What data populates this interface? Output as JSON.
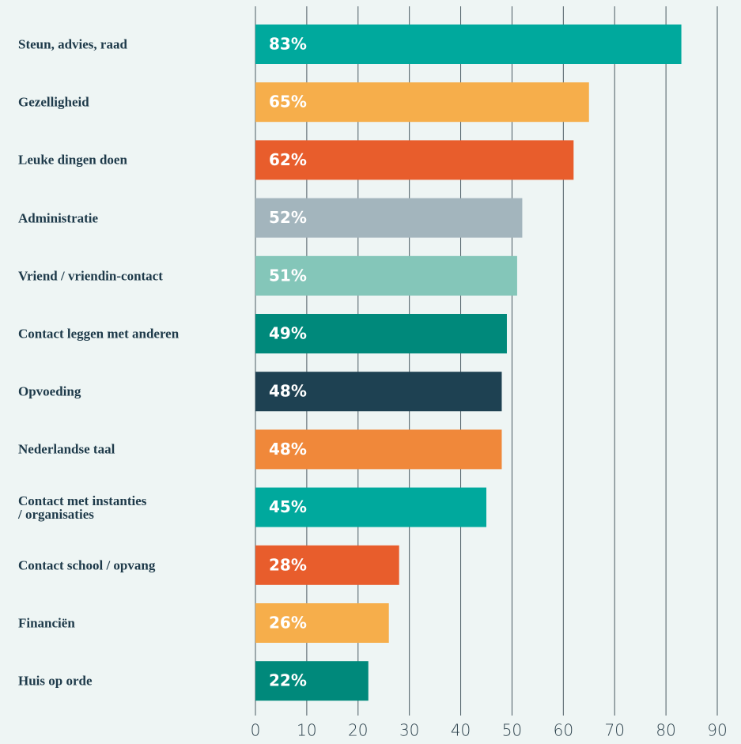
{
  "chart_data": {
    "type": "bar",
    "orientation": "horizontal",
    "categories": [
      "Steun, advies, raad",
      "Gezelligheid",
      "Leuke dingen doen",
      "Administratie",
      "Vriend / vriendin-contact",
      "Contact leggen met anderen",
      "Opvoeding",
      "Nederlandse taal",
      "Contact met instanties\n/ organisaties",
      "Contact school / opvang",
      "Financiën",
      "Huis op orde"
    ],
    "values": [
      83,
      65,
      62,
      52,
      51,
      49,
      48,
      48,
      45,
      28,
      26,
      22
    ],
    "value_labels": [
      "83%",
      "65%",
      "62%",
      "52%",
      "51%",
      "49%",
      "48%",
      "48%",
      "45%",
      "28%",
      "26%",
      "22%"
    ],
    "colors": [
      "#00a99d",
      "#f6ae4b",
      "#e85d2c",
      "#a3b5bd",
      "#84c6b9",
      "#00897b",
      "#1e4152",
      "#f0883a",
      "#00a99d",
      "#e85d2c",
      "#f6ae4b",
      "#00897b"
    ],
    "xlim": [
      0,
      90
    ],
    "xticks": [
      0,
      10,
      20,
      30,
      40,
      50,
      60,
      70,
      80,
      90
    ],
    "grid": true
  }
}
